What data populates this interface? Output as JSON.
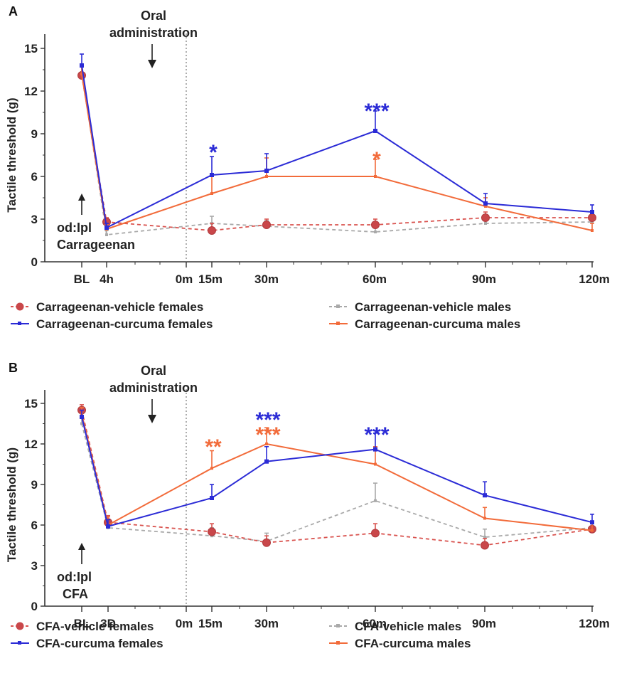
{
  "chart_data": [
    {
      "panel": "A",
      "type": "line",
      "ylabel": "Tactile threshold (g)",
      "ylim": [
        0,
        16
      ],
      "yticks": [
        0,
        3,
        6,
        9,
        12,
        15
      ],
      "x_categories": [
        "BL",
        "4h",
        "0m",
        "15m",
        "30m",
        "60m",
        "90m",
        "120m"
      ],
      "annotation_top": [
        "Oral",
        "administration"
      ],
      "annotation_bottom": [
        "od:Ipl",
        "Carrageenan"
      ],
      "series": [
        {
          "name": "Carrageenan-vehicle females",
          "color": "#d9534f",
          "dash": true,
          "marker": "circle",
          "points": [
            [
              "BL",
              13.1
            ],
            [
              "4h",
              2.8
            ],
            [
              "15m",
              2.2
            ],
            [
              "30m",
              2.6
            ],
            [
              "60m",
              2.6
            ],
            [
              "90m",
              3.1
            ],
            [
              "120m",
              3.1
            ]
          ],
          "err": [
            0.6,
            0.3,
            0.5,
            0.4,
            0.4,
            0.4,
            0.4
          ]
        },
        {
          "name": "Carrageenan-curcuma females",
          "color": "#2b2bd6",
          "dash": false,
          "marker": "square",
          "points": [
            [
              "BL",
              13.8
            ],
            [
              "4h",
              2.4
            ],
            [
              "15m",
              6.1
            ],
            [
              "30m",
              6.4
            ],
            [
              "60m",
              9.2
            ],
            [
              "90m",
              4.1
            ],
            [
              "120m",
              3.5
            ]
          ],
          "err": [
            0.8,
            0.3,
            1.3,
            1.2,
            1.4,
            0.7,
            0.5
          ]
        },
        {
          "name": "Carrageenan-vehicle males",
          "color": "#a9a9a9",
          "dash": true,
          "marker": "small",
          "points": [
            [
              "BL",
              13.3
            ],
            [
              "4h",
              1.9
            ],
            [
              "15m",
              2.7
            ],
            [
              "30m",
              2.5
            ],
            [
              "60m",
              2.1
            ],
            [
              "90m",
              2.7
            ],
            [
              "120m",
              2.8
            ]
          ],
          "err": [
            0.6,
            0.3,
            0.5,
            0.4,
            0.5,
            0.5,
            0.4
          ]
        },
        {
          "name": "Carrageenan-curcuma males",
          "color": "#f26b3a",
          "dash": false,
          "marker": "small",
          "points": [
            [
              "BL",
              13.2
            ],
            [
              "4h",
              2.3
            ],
            [
              "15m",
              4.8
            ],
            [
              "30m",
              6.0
            ],
            [
              "60m",
              6.0
            ],
            [
              "90m",
              3.9
            ],
            [
              "120m",
              2.2
            ]
          ],
          "err": [
            0.7,
            0.3,
            1.2,
            1.3,
            1.2,
            0.6,
            0.5
          ]
        }
      ],
      "significance": [
        {
          "x": "15m",
          "y": 7.9,
          "label": "*",
          "color": "#2b2bd6"
        },
        {
          "x": "60m",
          "y": 10.8,
          "label": "***",
          "color": "#2b2bd6"
        },
        {
          "x": "60m",
          "y": 7.4,
          "label": "*",
          "color": "#f26b3a"
        }
      ]
    },
    {
      "panel": "B",
      "type": "line",
      "ylabel": "Tactile threshold (g)",
      "ylim": [
        0,
        16
      ],
      "yticks": [
        0,
        3,
        6,
        9,
        12,
        15
      ],
      "x_categories": [
        "BL",
        "3D",
        "0m",
        "15m",
        "30m",
        "60m",
        "90m",
        "120m"
      ],
      "annotation_top": [
        "Oral",
        "administration"
      ],
      "annotation_bottom": [
        "od:Ipl",
        "CFA"
      ],
      "series": [
        {
          "name": "CFA-vehicle females",
          "color": "#d9534f",
          "dash": true,
          "marker": "circle",
          "points": [
            [
              "BL",
              14.5
            ],
            [
              "3D",
              6.2
            ],
            [
              "15m",
              5.5
            ],
            [
              "30m",
              4.7
            ],
            [
              "60m",
              5.4
            ],
            [
              "90m",
              4.5
            ],
            [
              "120m",
              5.7
            ]
          ],
          "err": [
            0.4,
            0.5,
            0.6,
            0.5,
            0.7,
            0.5,
            0.6
          ]
        },
        {
          "name": "CFA-curcuma females",
          "color": "#2b2bd6",
          "dash": false,
          "marker": "square",
          "points": [
            [
              "BL",
              14.0
            ],
            [
              "3D",
              5.9
            ],
            [
              "15m",
              8.0
            ],
            [
              "30m",
              10.7
            ],
            [
              "60m",
              11.6
            ],
            [
              "90m",
              8.2
            ],
            [
              "120m",
              6.2
            ]
          ],
          "err": [
            0.5,
            0.5,
            1.0,
            1.1,
            1.2,
            1.0,
            0.6
          ]
        },
        {
          "name": "CFA-vehicle males",
          "color": "#a9a9a9",
          "dash": true,
          "marker": "small",
          "points": [
            [
              "BL",
              13.5
            ],
            [
              "3D",
              5.8
            ],
            [
              "15m",
              5.2
            ],
            [
              "30m",
              4.8
            ],
            [
              "60m",
              7.8
            ],
            [
              "90m",
              5.1
            ],
            [
              "120m",
              5.8
            ]
          ],
          "err": [
            0.8,
            0.5,
            0.6,
            0.6,
            1.3,
            0.6,
            0.5
          ]
        },
        {
          "name": "CFA-curcuma males",
          "color": "#f26b3a",
          "dash": false,
          "marker": "small",
          "points": [
            [
              "BL",
              14.2
            ],
            [
              "3D",
              6.0
            ],
            [
              "15m",
              10.2
            ],
            [
              "30m",
              12.0
            ],
            [
              "60m",
              10.5
            ],
            [
              "90m",
              6.5
            ],
            [
              "120m",
              5.6
            ]
          ],
          "err": [
            0.5,
            0.6,
            1.3,
            1.2,
            1.3,
            0.8,
            0.6
          ]
        }
      ],
      "significance": [
        {
          "x": "15m",
          "y": 12.0,
          "label": "**",
          "color": "#f26b3a"
        },
        {
          "x": "30m",
          "y": 14.0,
          "label": "***",
          "color": "#2b2bd6"
        },
        {
          "x": "30m",
          "y": 12.9,
          "label": "***",
          "color": "#f26b3a"
        },
        {
          "x": "60m",
          "y": 12.9,
          "label": "***",
          "color": "#2b2bd6"
        }
      ]
    }
  ]
}
